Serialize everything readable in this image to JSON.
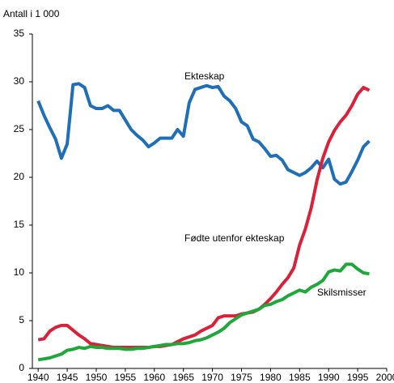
{
  "chart_data": {
    "type": "line",
    "ylabel": "Antall i 1 000",
    "x": [
      1940,
      1941,
      1942,
      1943,
      1944,
      1945,
      1946,
      1947,
      1948,
      1949,
      1950,
      1951,
      1952,
      1953,
      1954,
      1955,
      1956,
      1957,
      1958,
      1959,
      1960,
      1961,
      1962,
      1963,
      1964,
      1965,
      1966,
      1967,
      1968,
      1969,
      1970,
      1971,
      1972,
      1973,
      1974,
      1975,
      1976,
      1977,
      1978,
      1979,
      1980,
      1981,
      1982,
      1983,
      1984,
      1985,
      1986,
      1987,
      1988,
      1989,
      1990,
      1991,
      1992,
      1993,
      1994,
      1995,
      1996,
      1997
    ],
    "series": [
      {
        "name": "Ekteskap",
        "color": "#1f6fb8",
        "values": [
          28,
          26.5,
          25.2,
          24,
          22,
          23.5,
          29.7,
          29.8,
          29.4,
          27.5,
          27.2,
          27.2,
          27.5,
          27,
          27,
          26,
          25,
          24.4,
          23.9,
          23.2,
          23.6,
          24.1,
          24.1,
          24.1,
          25,
          24.3,
          27.8,
          29.2,
          29.4,
          29.6,
          29.4,
          29.5,
          28.5,
          28,
          27.2,
          25.8,
          25.4,
          24,
          23.7,
          23,
          22.2,
          22.3,
          21.8,
          20.8,
          20.5,
          20.2,
          20.5,
          21,
          21.7,
          21,
          21.9,
          19.8,
          19.3,
          19.5,
          20.6,
          21.8,
          23.2,
          23.8
        ]
      },
      {
        "name": "Fødte utenfor ekteskap",
        "color": "#d9213a",
        "values": [
          3,
          3.1,
          3.9,
          4.3,
          4.5,
          4.5,
          4,
          3.5,
          3.1,
          2.6,
          2.5,
          2.4,
          2.3,
          2.2,
          2.2,
          2.2,
          2.2,
          2.2,
          2.2,
          2.2,
          2.3,
          2.3,
          2.4,
          2.5,
          2.8,
          3.1,
          3.3,
          3.5,
          3.9,
          4.2,
          4.5,
          5.3,
          5.5,
          5.5,
          5.5,
          5.7,
          5.8,
          5.9,
          6.2,
          6.7,
          7.3,
          8,
          8.8,
          9.5,
          10.5,
          12.9,
          14.6,
          16.8,
          19.7,
          22,
          23.7,
          24.9,
          25.8,
          26.5,
          27.5,
          28.7,
          29.4,
          29.1
        ]
      },
      {
        "name": "Skilsmisser",
        "color": "#1fa83a",
        "values": [
          0.9,
          1,
          1.1,
          1.3,
          1.5,
          1.9,
          2,
          2.2,
          2.1,
          2.3,
          2.2,
          2.2,
          2.1,
          2.1,
          2.1,
          2,
          2,
          2.1,
          2.1,
          2.2,
          2.3,
          2.4,
          2.5,
          2.5,
          2.6,
          2.6,
          2.7,
          2.9,
          3,
          3.2,
          3.5,
          3.8,
          4.2,
          4.8,
          5.2,
          5.6,
          5.8,
          6,
          6.2,
          6.6,
          6.7,
          7,
          7.2,
          7.6,
          7.9,
          8.2,
          8,
          8.5,
          8.8,
          9.2,
          10.1,
          10.3,
          10.2,
          10.9,
          10.9,
          10.4,
          10,
          9.9
        ]
      }
    ],
    "xlim": [
      1939,
      2000
    ],
    "xticks": [
      1940,
      1945,
      1950,
      1955,
      1960,
      1965,
      1970,
      1975,
      1980,
      1985,
      1990,
      1995,
      2000
    ],
    "ylim": [
      0,
      35
    ],
    "yticks": [
      0,
      5,
      10,
      15,
      20,
      25,
      30,
      35
    ],
    "grid": false
  }
}
